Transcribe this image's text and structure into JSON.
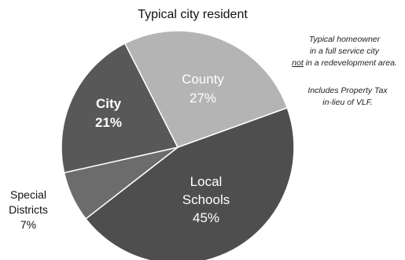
{
  "chart_data": {
    "type": "pie",
    "title": "Typical city resident",
    "slices": [
      {
        "name": "County",
        "lines": [
          "County",
          "27%"
        ],
        "value": 27,
        "color": "#b4b4b4",
        "label_weight": "normal"
      },
      {
        "name": "Local Schools",
        "lines": [
          "Local",
          "Schools",
          "45%"
        ],
        "value": 45,
        "color": "#4e4e4e",
        "label_weight": "normal"
      },
      {
        "name": "Special Districts",
        "lines": [
          "Special",
          "Districts",
          "7%"
        ],
        "value": 7,
        "color": "#6c6c6c",
        "label_weight": "normal",
        "outside": true
      },
      {
        "name": "City",
        "lines": [
          "City",
          "21%"
        ],
        "value": 21,
        "color": "#585858",
        "label_weight": "bold"
      }
    ],
    "start_angle_deg": 333,
    "slice_border_color": "#ffffff"
  },
  "notes": {
    "homeowner_lines": [
      {
        "parts": [
          {
            "text": "Typical homeowner"
          }
        ]
      },
      {
        "parts": [
          {
            "text": "in a full service city"
          }
        ]
      },
      {
        "parts": [
          {
            "text": "not",
            "underline": true
          },
          {
            "text": " in a redevelopment area."
          }
        ]
      }
    ],
    "tax_lines": [
      {
        "parts": [
          {
            "text": "Includes Property Tax"
          }
        ]
      },
      {
        "parts": [
          {
            "text": "in-lieu of VLF."
          }
        ]
      }
    ]
  }
}
